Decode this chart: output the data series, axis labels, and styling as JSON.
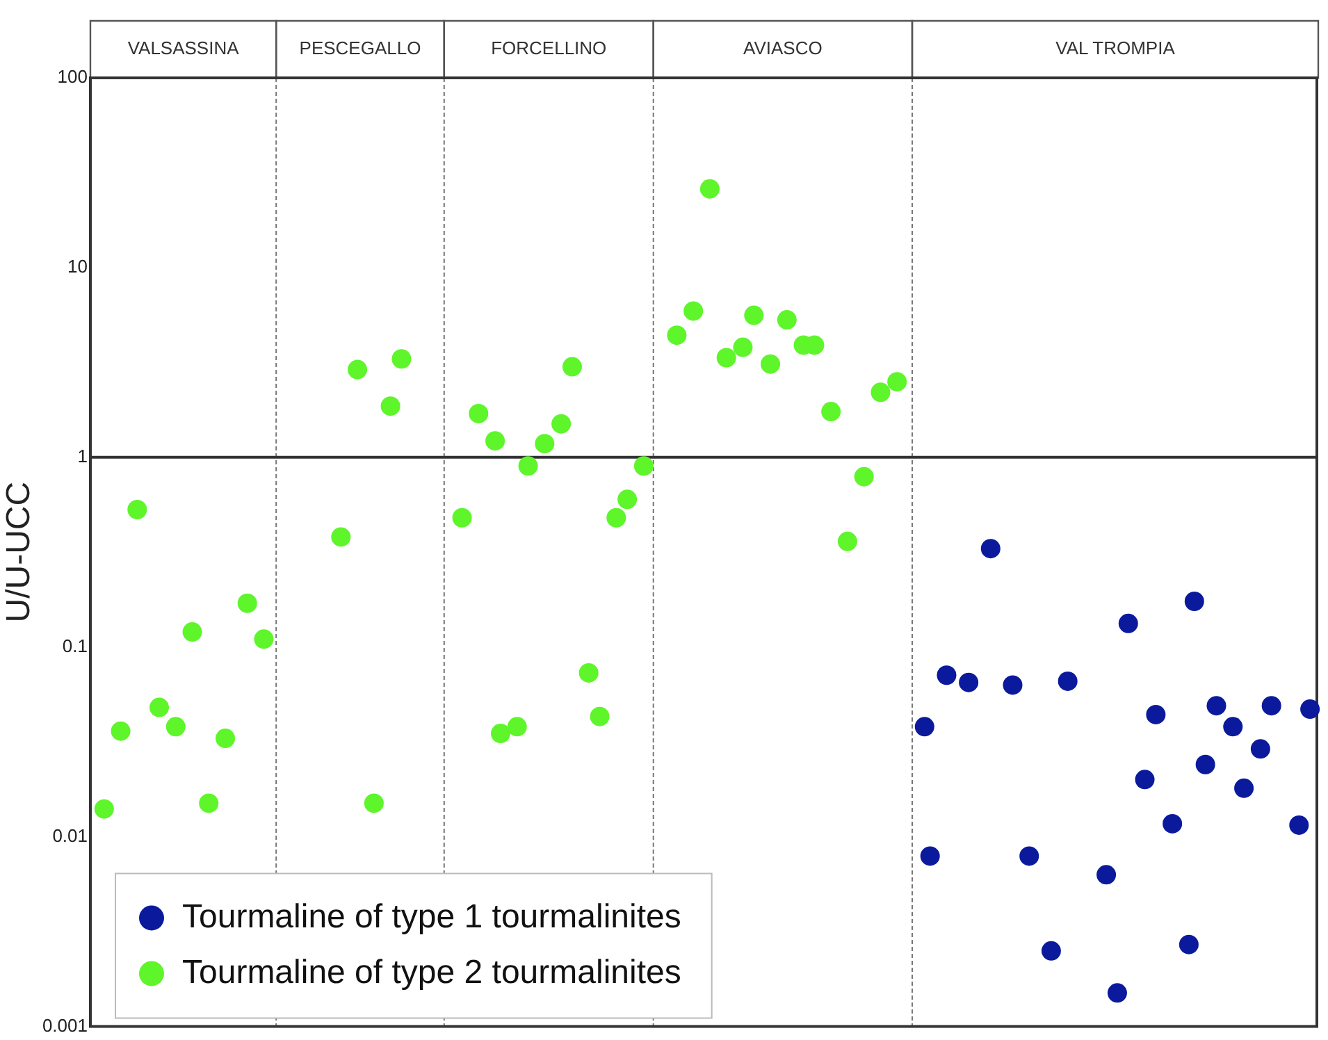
{
  "chart_data": {
    "type": "scatter",
    "ylabel": "U/U-UCC",
    "log": true,
    "ylim": [
      0.001,
      100
    ],
    "yticks": [
      0.001,
      0.01,
      0.1,
      1,
      10,
      100
    ],
    "tick_labels": "y",
    "grid": false,
    "legend": "bottom left",
    "marker": "circle",
    "ref_lines": [
      {
        "axis": "y",
        "value": 1
      }
    ],
    "annotations": [
      "VALSASSINA",
      "PESCEGALLO",
      "FORCELLINO",
      "AVIASCO",
      "VAL TROMPIA"
    ],
    "categories": [
      null,
      null,
      null,
      null,
      null,
      null,
      null,
      null,
      null,
      null,
      null,
      null,
      null,
      null,
      null,
      null,
      null,
      null,
      null,
      null,
      null,
      null,
      null,
      null,
      null,
      null,
      null,
      null,
      null,
      null,
      null,
      null,
      null,
      null,
      null,
      null,
      null,
      null,
      null,
      null,
      null,
      null,
      null,
      null,
      null,
      null,
      null,
      null,
      null,
      null,
      null,
      null,
      null,
      null,
      null,
      null,
      null,
      null,
      null,
      null,
      null,
      null,
      null,
      null,
      null,
      null,
      null,
      null,
      null,
      null,
      null,
      null,
      null,
      null,
      null,
      null,
      null,
      null,
      null,
      null,
      null,
      null,
      null,
      null,
      null,
      null,
      null,
      null,
      null,
      null,
      null,
      null,
      null,
      null,
      null,
      null,
      null,
      null,
      null,
      null,
      null,
      null,
      null,
      null,
      null,
      null,
      null,
      null,
      null,
      null,
      null,
      null,
      null,
      null,
      null,
      null,
      null,
      null,
      null,
      null,
      null,
      null,
      null,
      null,
      null,
      null,
      null,
      null,
      null,
      null,
      null,
      null,
      null,
      null,
      null,
      null,
      null,
      null,
      null,
      null,
      null,
      null,
      null,
      null,
      null,
      null,
      null,
      null,
      null,
      null,
      null,
      null,
      null,
      null,
      null,
      null,
      null,
      null,
      null,
      null,
      null,
      null,
      null,
      null,
      null,
      null,
      null,
      null,
      null,
      null,
      null,
      null,
      null,
      null,
      null,
      null,
      null,
      null,
      null,
      null,
      null,
      null,
      null,
      null,
      null,
      null,
      null,
      null,
      null,
      null,
      null,
      null,
      null,
      null,
      null,
      null,
      null,
      null,
      null,
      null,
      null,
      null,
      null,
      null,
      null,
      null,
      null,
      null,
      null,
      null,
      null,
      null,
      null,
      null,
      null,
      null,
      null,
      null,
      null,
      null,
      null,
      null,
      null
    ],
    "series": [
      {
        "name": "Tourmaline of type 1 tourmalinites",
        "color": "#0b1a9c",
        "values": [
          null,
          null,
          null,
          null,
          null,
          null,
          null,
          null,
          null,
          null,
          null,
          null,
          null,
          null,
          null,
          null,
          null,
          null,
          null,
          null,
          null,
          null,
          null,
          null,
          null,
          null,
          null,
          null,
          null,
          null,
          null,
          null,
          null,
          null,
          null,
          null,
          null,
          null,
          null,
          null,
          null,
          null,
          null,
          null,
          null,
          null,
          null,
          null,
          null,
          null,
          null,
          null,
          null,
          null,
          null,
          null,
          null,
          null,
          null,
          null,
          null,
          null,
          null,
          null,
          null,
          null,
          null,
          null,
          null,
          null,
          null,
          null,
          null,
          null,
          null,
          null,
          null,
          null,
          null,
          null,
          null,
          null,
          null,
          null,
          null,
          null,
          null,
          null,
          null,
          null,
          null,
          null,
          null,
          null,
          null,
          null,
          null,
          null,
          null,
          null,
          null,
          null,
          null,
          null,
          null,
          null,
          null,
          null,
          null,
          null,
          null,
          null,
          null,
          null,
          null,
          null,
          null,
          null,
          null,
          null,
          null,
          null,
          null,
          null,
          null,
          null,
          null,
          null,
          null,
          null,
          null,
          null,
          null,
          null,
          null,
          null,
          null,
          null,
          null,
          null,
          null,
          null,
          null,
          null,
          null,
          null,
          null,
          null,
          null,
          null,
          null,
          0.038,
          0.0079,
          null,
          null,
          0.071,
          null,
          null,
          null,
          0.065,
          null,
          null,
          null,
          0.33,
          null,
          null,
          null,
          0.063,
          null,
          null,
          0.0079,
          null,
          null,
          null,
          0.0025,
          null,
          null,
          0.066,
          null,
          null,
          null,
          null,
          null,
          null,
          0.0063,
          null,
          0.0015,
          null,
          0.133,
          null,
          null,
          0.02,
          null,
          0.044,
          null,
          null,
          0.0117,
          null,
          null,
          0.0027,
          0.174,
          null,
          0.024,
          null,
          0.049,
          null,
          null,
          0.038,
          null,
          0.018,
          null,
          null,
          0.029,
          null,
          0.049,
          null,
          null,
          null,
          null,
          0.0115,
          null,
          0.047,
          null
        ]
      },
      {
        "name": "Tourmaline of type 2 tourmalinites",
        "color": "#5ef52b",
        "values": [
          null,
          null,
          0.014,
          null,
          null,
          0.036,
          null,
          null,
          0.53,
          null,
          null,
          null,
          0.048,
          null,
          null,
          0.038,
          null,
          null,
          0.12,
          null,
          null,
          0.015,
          null,
          null,
          0.033,
          null,
          null,
          null,
          0.17,
          null,
          null,
          0.11,
          null,
          null,
          null,
          null,
          null,
          null,
          null,
          null,
          null,
          null,
          null,
          null,
          null,
          0.38,
          null,
          null,
          2.9,
          null,
          null,
          0.015,
          null,
          null,
          1.86,
          null,
          3.3,
          null,
          null,
          null,
          null,
          null,
          null,
          null,
          null,
          null,
          null,
          0.48,
          null,
          null,
          1.7,
          null,
          null,
          1.22,
          0.035,
          null,
          null,
          0.038,
          null,
          0.9,
          null,
          null,
          1.18,
          null,
          null,
          1.5,
          null,
          3.0,
          null,
          null,
          0.073,
          null,
          0.043,
          null,
          null,
          0.48,
          null,
          0.6,
          null,
          null,
          0.9,
          null,
          null,
          null,
          null,
          null,
          4.4,
          null,
          null,
          5.9,
          null,
          null,
          26,
          null,
          null,
          3.35,
          null,
          null,
          3.8,
          null,
          5.6,
          null,
          null,
          3.1,
          null,
          null,
          5.3,
          null,
          null,
          3.9,
          null,
          3.9,
          null,
          null,
          1.74,
          null,
          null,
          0.36,
          null,
          null,
          0.79,
          null,
          null,
          2.2,
          null,
          null,
          2.5,
          null,
          null,
          null,
          null,
          null,
          null,
          null,
          null,
          null,
          null,
          null,
          null,
          null,
          null,
          null,
          null,
          null,
          null,
          null,
          null,
          null,
          null,
          null,
          null,
          null,
          null,
          null,
          null,
          null,
          null,
          null,
          null,
          null,
          null,
          null,
          null,
          null,
          null,
          null,
          null,
          null,
          null,
          null,
          null,
          null,
          null,
          null,
          null,
          null,
          null,
          null,
          null,
          null,
          null,
          null,
          null,
          null,
          null,
          null,
          null,
          null,
          null,
          null,
          null,
          null,
          null,
          null,
          null,
          null,
          null,
          null,
          null,
          null,
          null,
          null,
          null
        ]
      }
    ]
  }
}
